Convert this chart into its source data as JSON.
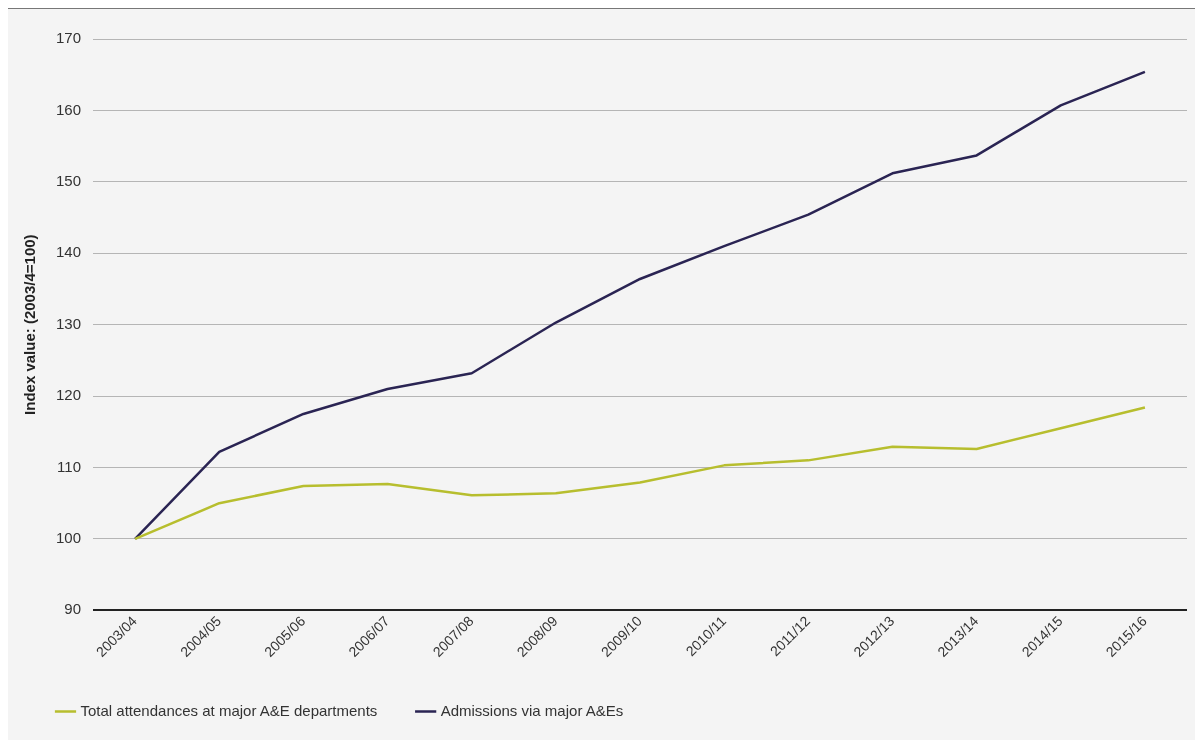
{
  "chart_data": {
    "type": "line",
    "ylabel": "Index value: (2003/4=100)",
    "categories": [
      "2003/04",
      "2004/05",
      "2005/06",
      "2006/07",
      "2007/08",
      "2008/09",
      "2009/10",
      "2010/11",
      "2011/12",
      "2012/13",
      "2013/14",
      "2014/15",
      "2015/16"
    ],
    "series": [
      {
        "name": "Total attendances at major A&E departments",
        "color": "#b7be2e",
        "values": [
          100,
          105,
          107.4,
          107.7,
          106.1,
          106.4,
          107.9,
          110.3,
          111,
          112.9,
          112.6,
          115.5,
          118.4
        ]
      },
      {
        "name": "Admissions via major A&Es",
        "color": "#2a2453",
        "values": [
          100,
          112.2,
          117.5,
          121,
          123.2,
          130.3,
          136.4,
          141,
          145.4,
          151.2,
          153.7,
          160.7,
          165.4
        ]
      }
    ],
    "ylim": [
      90,
      170
    ],
    "yticks": [
      90,
      100,
      110,
      120,
      130,
      140,
      150,
      160,
      170
    ],
    "grid": "y",
    "legend": "bottom left",
    "marker": "none",
    "line_style": "solid"
  }
}
